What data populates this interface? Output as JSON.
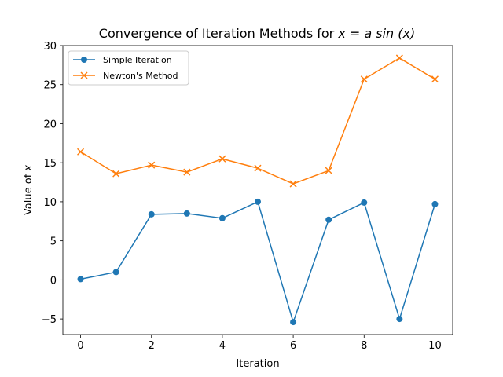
{
  "chart_data": {
    "type": "line",
    "title": "Convergence of Iteration Methods for x = a sin(x)",
    "title_parts": {
      "prefix": "Convergence of Iteration Methods for ",
      "math": "x = a sin (x)"
    },
    "xlabel": "Iteration",
    "ylabel": "Value of x",
    "ylabel_parts": {
      "prefix": "Value of ",
      "math": "x"
    },
    "x": [
      0,
      1,
      2,
      3,
      4,
      5,
      6,
      7,
      8,
      9,
      10
    ],
    "xlim": [
      -0.5,
      10.5
    ],
    "ylim": [
      -7,
      30
    ],
    "xticks": [
      0,
      2,
      4,
      6,
      8,
      10
    ],
    "yticks": [
      -5,
      0,
      5,
      10,
      15,
      20,
      25,
      30
    ],
    "ytick_labels": [
      "−5",
      "0",
      "5",
      "10",
      "15",
      "20",
      "25",
      "30"
    ],
    "grid": false,
    "legend_position": "top-left",
    "series": [
      {
        "name": "Simple Iteration",
        "color": "#1f77b4",
        "marker": "circle",
        "values": [
          0.1,
          1.0,
          8.4,
          8.5,
          7.9,
          10.0,
          -5.4,
          7.7,
          9.9,
          -5.0,
          9.7
        ]
      },
      {
        "name": "Newton's Method",
        "color": "#ff7f0e",
        "marker": "x",
        "values": [
          16.4,
          13.6,
          14.7,
          13.8,
          15.5,
          14.3,
          12.3,
          14.0,
          25.7,
          28.4,
          25.7
        ]
      }
    ]
  }
}
